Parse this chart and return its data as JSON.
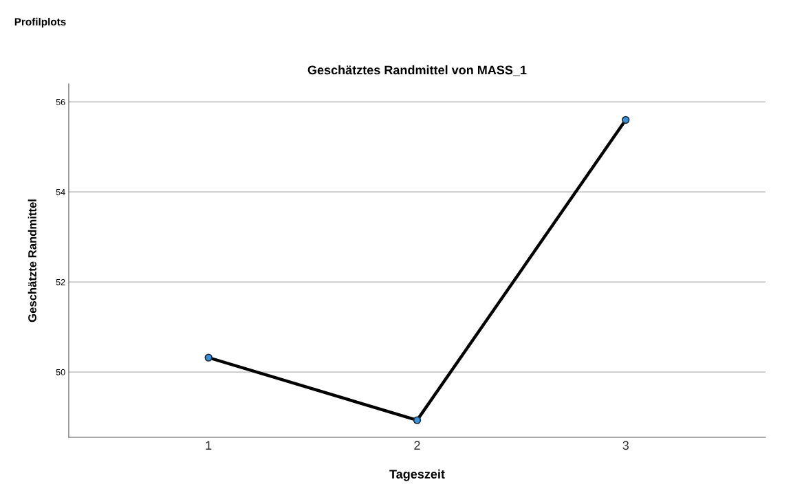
{
  "chart_data": {
    "type": "line",
    "title": "Geschätztes Randmittel von MASS_1",
    "xlabel": "Tageszeit",
    "ylabel": "Geschätzte Randmittel",
    "annotations": [
      "Profilplots"
    ],
    "categories": [
      "1",
      "2",
      "3"
    ],
    "series": [
      {
        "color": "#000000",
        "values": [
          50.32,
          48.93,
          55.6
        ]
      }
    ],
    "marker": "circle",
    "ylim": [
      48.55,
      56.4
    ],
    "yticks": [
      50,
      52,
      54,
      56
    ],
    "grid": "y",
    "legend": false
  }
}
